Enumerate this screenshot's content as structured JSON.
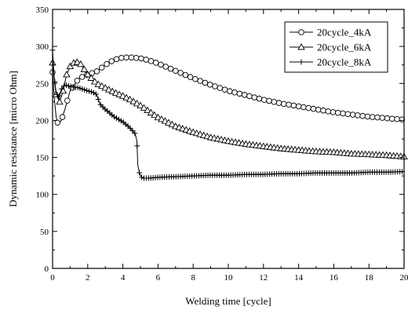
{
  "chart_data": {
    "type": "line",
    "title": "",
    "xlabel": "Welding time [cycle]",
    "ylabel": "Dynamic resistance [micro Ohm]",
    "xlim": [
      0,
      20
    ],
    "ylim": [
      0,
      350
    ],
    "xticks": [
      "0",
      "2",
      "4",
      "6",
      "8",
      "10",
      "12",
      "14",
      "16",
      "18",
      "20"
    ],
    "yticks": [
      "0",
      "50",
      "100",
      "150",
      "200",
      "250",
      "300",
      "350"
    ],
    "grid": false,
    "legend_position": "top-right",
    "series": [
      {
        "name": "20cycle_4kA",
        "marker": "circle",
        "points": [
          [
            0,
            265
          ],
          [
            0.1,
            230
          ],
          [
            0.2,
            205
          ],
          [
            0.3,
            195
          ],
          [
            0.5,
            200
          ],
          [
            0.7,
            215
          ],
          [
            1.0,
            240
          ],
          [
            1.5,
            257
          ],
          [
            2.0,
            262
          ],
          [
            2.5,
            266
          ],
          [
            3.0,
            275
          ],
          [
            3.5,
            282
          ],
          [
            4.0,
            285
          ],
          [
            4.5,
            285
          ],
          [
            5.0,
            284
          ],
          [
            5.5,
            281
          ],
          [
            6.0,
            277
          ],
          [
            7.0,
            267
          ],
          [
            8.0,
            257
          ],
          [
            9.0,
            248
          ],
          [
            10.0,
            240
          ],
          [
            11.0,
            234
          ],
          [
            12.0,
            228
          ],
          [
            13.0,
            223
          ],
          [
            14.0,
            219
          ],
          [
            15.0,
            215
          ],
          [
            16.0,
            211
          ],
          [
            17.0,
            208
          ],
          [
            18.0,
            205
          ],
          [
            19.0,
            203
          ],
          [
            20.0,
            201
          ]
        ]
      },
      {
        "name": "20cycle_6kA",
        "marker": "triangle",
        "points": [
          [
            0,
            278
          ],
          [
            0.1,
            255
          ],
          [
            0.2,
            235
          ],
          [
            0.4,
            225
          ],
          [
            0.6,
            240
          ],
          [
            0.8,
            262
          ],
          [
            1.0,
            273
          ],
          [
            1.3,
            280
          ],
          [
            1.6,
            276
          ],
          [
            2.0,
            262
          ],
          [
            2.5,
            250
          ],
          [
            3.0,
            244
          ],
          [
            3.5,
            238
          ],
          [
            4.0,
            233
          ],
          [
            4.5,
            227
          ],
          [
            5.0,
            220
          ],
          [
            5.5,
            212
          ],
          [
            6.0,
            204
          ],
          [
            7.0,
            192
          ],
          [
            8.0,
            184
          ],
          [
            9.0,
            177
          ],
          [
            10.0,
            172
          ],
          [
            11.0,
            168
          ],
          [
            12.0,
            165
          ],
          [
            13.0,
            162
          ],
          [
            14.0,
            160
          ],
          [
            15.0,
            158
          ],
          [
            16.0,
            157
          ],
          [
            17.0,
            155
          ],
          [
            18.0,
            154
          ],
          [
            19.0,
            153
          ],
          [
            20.0,
            151
          ]
        ]
      },
      {
        "name": "20cycle_8kA",
        "marker": "plus",
        "points": [
          [
            0,
            295
          ],
          [
            0.08,
            262
          ],
          [
            0.2,
            238
          ],
          [
            0.35,
            230
          ],
          [
            0.5,
            242
          ],
          [
            0.7,
            248
          ],
          [
            1.0,
            246
          ],
          [
            1.5,
            244
          ],
          [
            2.0,
            240
          ],
          [
            2.3,
            238
          ],
          [
            2.5,
            235
          ],
          [
            2.7,
            222
          ],
          [
            3.0,
            215
          ],
          [
            3.5,
            205
          ],
          [
            4.0,
            198
          ],
          [
            4.4,
            190
          ],
          [
            4.7,
            182
          ],
          [
            4.8,
            172
          ],
          [
            4.85,
            140
          ],
          [
            4.95,
            128
          ],
          [
            5.1,
            122
          ],
          [
            5.5,
            122
          ],
          [
            6.0,
            123
          ],
          [
            7.0,
            124
          ],
          [
            8.0,
            125
          ],
          [
            9.0,
            126
          ],
          [
            10.0,
            126
          ],
          [
            11.0,
            127
          ],
          [
            12.0,
            127
          ],
          [
            13.0,
            128
          ],
          [
            14.0,
            128
          ],
          [
            15.0,
            129
          ],
          [
            16.0,
            129
          ],
          [
            17.0,
            129
          ],
          [
            18.0,
            130
          ],
          [
            19.0,
            130
          ],
          [
            20.0,
            131
          ]
        ]
      }
    ]
  }
}
